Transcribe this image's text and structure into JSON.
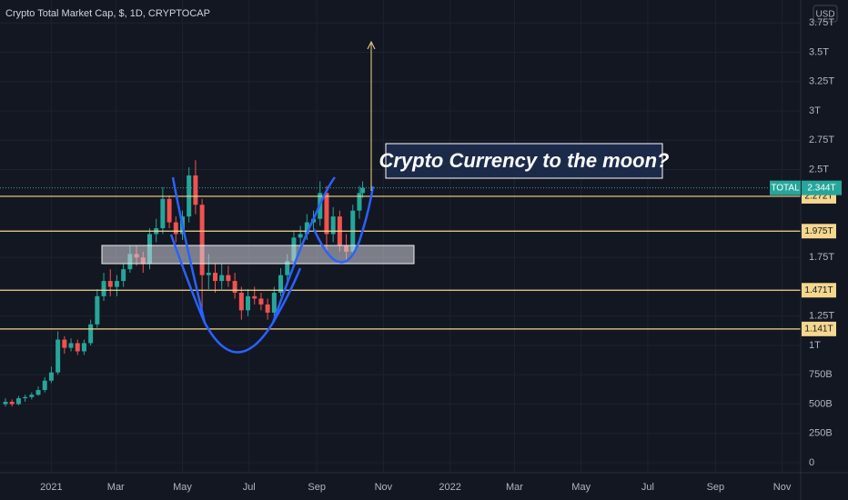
{
  "chart_data": {
    "type": "candlestick",
    "title": "Crypto Total Market Cap, $, 1D, CRYPTOCAP",
    "currency_label": "USD",
    "x": [
      "2020-11-20",
      "2020-11-26",
      "2020-12-02",
      "2020-12-08",
      "2020-12-14",
      "2020-12-20",
      "2020-12-26",
      "2021-01-01",
      "2021-01-07",
      "2021-01-13",
      "2021-01-19",
      "2021-01-25",
      "2021-01-31",
      "2021-02-06",
      "2021-02-12",
      "2021-02-18",
      "2021-02-24",
      "2021-03-02",
      "2021-03-08",
      "2021-03-14",
      "2021-03-20",
      "2021-03-26",
      "2021-04-01",
      "2021-04-07",
      "2021-04-13",
      "2021-04-19",
      "2021-04-25",
      "2021-05-01",
      "2021-05-07",
      "2021-05-13",
      "2021-05-19",
      "2021-05-25",
      "2021-05-31",
      "2021-06-06",
      "2021-06-12",
      "2021-06-18",
      "2021-06-24",
      "2021-06-30",
      "2021-07-06",
      "2021-07-12",
      "2021-07-18",
      "2021-07-24",
      "2021-07-30",
      "2021-08-05",
      "2021-08-11",
      "2021-08-17",
      "2021-08-23",
      "2021-08-29",
      "2021-09-04",
      "2021-09-10",
      "2021-09-16",
      "2021-09-22",
      "2021-09-28",
      "2021-10-04",
      "2021-10-10",
      "2021-10-13"
    ],
    "open": [
      0.5,
      0.52,
      0.5,
      0.55,
      0.56,
      0.58,
      0.62,
      0.7,
      0.77,
      1.05,
      0.98,
      1.02,
      0.95,
      1.02,
      1.18,
      1.42,
      1.55,
      1.5,
      1.55,
      1.65,
      1.78,
      1.75,
      1.7,
      1.95,
      2.0,
      2.25,
      2.05,
      1.95,
      2.1,
      2.45,
      2.2,
      1.6,
      1.62,
      1.55,
      1.6,
      1.55,
      1.45,
      1.3,
      1.42,
      1.4,
      1.35,
      1.28,
      1.45,
      1.6,
      1.72,
      1.92,
      1.95,
      2.05,
      2.08,
      2.3,
      1.95,
      2.1,
      1.85,
      1.8,
      2.15,
      2.3
    ],
    "high": [
      0.55,
      0.54,
      0.57,
      0.58,
      0.6,
      0.65,
      0.73,
      0.82,
      1.12,
      1.08,
      1.06,
      1.05,
      1.05,
      1.22,
      1.48,
      1.62,
      1.65,
      1.6,
      1.7,
      1.85,
      1.85,
      1.8,
      2.0,
      2.08,
      2.35,
      2.28,
      2.1,
      2.15,
      2.52,
      2.58,
      2.25,
      1.78,
      1.7,
      1.7,
      1.68,
      1.62,
      1.5,
      1.48,
      1.5,
      1.45,
      1.4,
      1.5,
      1.66,
      1.78,
      1.98,
      2.02,
      2.12,
      2.15,
      2.4,
      2.36,
      2.18,
      2.15,
      1.95,
      2.2,
      2.36,
      2.4
    ],
    "low": [
      0.48,
      0.48,
      0.49,
      0.52,
      0.54,
      0.57,
      0.6,
      0.68,
      0.75,
      0.93,
      0.95,
      0.92,
      0.92,
      1.0,
      1.15,
      1.38,
      1.42,
      1.42,
      1.5,
      1.62,
      1.68,
      1.62,
      1.65,
      1.88,
      1.95,
      2.0,
      1.88,
      1.9,
      2.05,
      2.12,
      1.25,
      1.48,
      1.45,
      1.48,
      1.5,
      1.4,
      1.22,
      1.25,
      1.35,
      1.3,
      1.22,
      1.25,
      1.42,
      1.55,
      1.68,
      1.85,
      1.9,
      1.98,
      2.02,
      1.8,
      1.88,
      1.8,
      1.72,
      1.78,
      2.08,
      2.26
    ],
    "close": [
      0.52,
      0.5,
      0.55,
      0.56,
      0.58,
      0.62,
      0.7,
      0.77,
      1.05,
      0.98,
      1.02,
      0.95,
      1.02,
      1.18,
      1.42,
      1.55,
      1.5,
      1.55,
      1.65,
      1.78,
      1.75,
      1.7,
      1.95,
      2.0,
      2.25,
      2.05,
      1.95,
      2.1,
      2.45,
      2.2,
      1.6,
      1.62,
      1.55,
      1.6,
      1.55,
      1.45,
      1.3,
      1.42,
      1.4,
      1.35,
      1.28,
      1.45,
      1.6,
      1.72,
      1.92,
      1.95,
      2.05,
      2.08,
      2.3,
      1.95,
      2.1,
      1.85,
      1.8,
      2.15,
      2.3,
      2.344
    ],
    "up_color": "#26a69a",
    "down_color": "#ef5350",
    "xlim": [
      "2020-11-15",
      "2022-11-18"
    ],
    "xticks": [
      {
        "value": "2021-01-01",
        "label": "2021"
      },
      {
        "value": "2021-03-01",
        "label": "Mar"
      },
      {
        "value": "2021-05-01",
        "label": "May"
      },
      {
        "value": "2021-07-01",
        "label": "Jul"
      },
      {
        "value": "2021-09-01",
        "label": "Sep"
      },
      {
        "value": "2021-11-01",
        "label": "Nov"
      },
      {
        "value": "2022-01-01",
        "label": "2022"
      },
      {
        "value": "2022-03-01",
        "label": "Mar"
      },
      {
        "value": "2022-05-01",
        "label": "May"
      },
      {
        "value": "2022-07-01",
        "label": "Jul"
      },
      {
        "value": "2022-09-01",
        "label": "Sep"
      },
      {
        "value": "2022-11-01",
        "label": "Nov"
      }
    ],
    "ylim": [
      -0.085,
      3.946
    ],
    "yticks": [
      0,
      {
        "value": 0.25,
        "label": "250B"
      },
      {
        "value": 0.5,
        "label": "500B"
      },
      {
        "value": 0.75,
        "label": "750B"
      },
      {
        "value": 1,
        "label": "1T"
      },
      {
        "value": 1.25,
        "label": "1.25T"
      },
      {
        "value": 1.75,
        "label": "1.75T"
      },
      {
        "value": 2.5,
        "label": "2.5T"
      },
      {
        "value": 2.75,
        "label": "2.75T"
      },
      {
        "value": 3,
        "label": "3T"
      },
      {
        "value": 3.25,
        "label": "3.25T"
      },
      {
        "value": 3.5,
        "label": "3.5T"
      },
      {
        "value": 3.75,
        "label": "3.75T"
      }
    ],
    "grid": true,
    "levels": {
      "values": [
        2.272,
        1.975,
        1.471,
        1.141
      ],
      "value_labels": [
        "2.272T",
        "1.975T",
        "1.471T",
        "1.141T"
      ],
      "color": "#f5d78e"
    },
    "last_price": {
      "name": "TOTAL",
      "value": 2.344,
      "value_label": "2.344T",
      "color": "#26a69a"
    },
    "annotation": "Crypto Currency to the moon?"
  }
}
